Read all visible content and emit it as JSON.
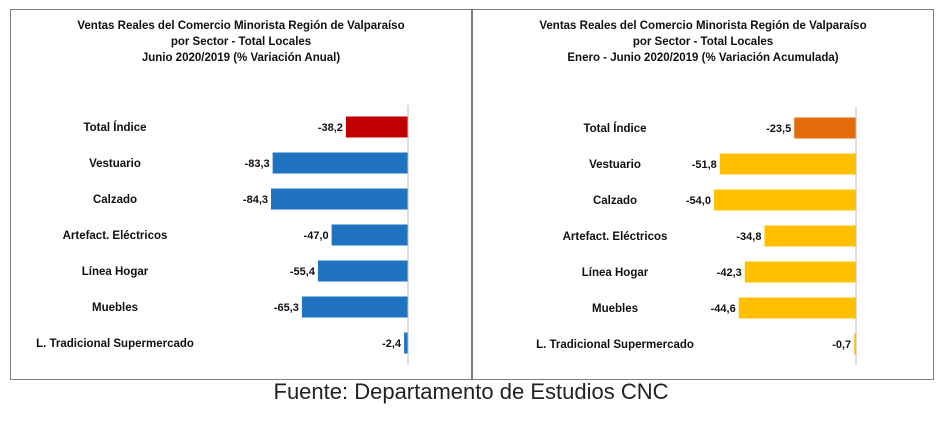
{
  "source": "Fuente: Departamento de Estudios CNC",
  "chart_data": [
    {
      "type": "bar",
      "orientation": "horizontal",
      "title": [
        "Ventas Reales del Comercio Minorista Región de Valparaíso",
        "por Sector - Total Locales",
        "Junio 2020/2019 (% Variación Anual)"
      ],
      "categories": [
        "Total Índice",
        "Vestuario",
        "Calzado",
        "Artefact. Eléctricos",
        "Línea Hogar",
        "Muebles",
        "L. Tradicional Supermercado"
      ],
      "values": [
        -38.2,
        -83.3,
        -84.3,
        -47.0,
        -55.4,
        -65.3,
        -2.4
      ],
      "value_labels": [
        "-38,2",
        "-83,3",
        "-84,3",
        "-47,0",
        "-55,4",
        "-65,3",
        "-2,4"
      ],
      "colors": [
        "#c00000",
        "#1f73c1",
        "#1f73c1",
        "#1f73c1",
        "#1f73c1",
        "#1f73c1",
        "#1f73c1"
      ],
      "xlim": [
        -100,
        0
      ],
      "grid": false,
      "legend": "none"
    },
    {
      "type": "bar",
      "orientation": "horizontal",
      "title": [
        "Ventas Reales del Comercio Minorista Región de Valparaíso",
        "por Sector  - Total Locales",
        "Enero - Junio  2020/2019 (% Variación Acumulada)"
      ],
      "categories": [
        "Total Índice",
        "Vestuario",
        "Calzado",
        "Artefact. Eléctricos",
        "Línea Hogar",
        "Muebles",
        "L. Tradicional Supermercado"
      ],
      "values": [
        -23.5,
        -51.8,
        -54.0,
        -34.8,
        -42.3,
        -44.6,
        -0.7
      ],
      "value_labels": [
        "-23,5",
        "-51,8",
        "-54,0",
        "-34,8",
        "-42,3",
        "-44,6",
        "-0,7"
      ],
      "colors": [
        "#e46c0a",
        "#ffc000",
        "#ffc000",
        "#ffc000",
        "#ffc000",
        "#ffc000",
        "#ffc000"
      ],
      "xlim": [
        -60,
        0
      ],
      "grid": false,
      "legend": "none"
    }
  ]
}
